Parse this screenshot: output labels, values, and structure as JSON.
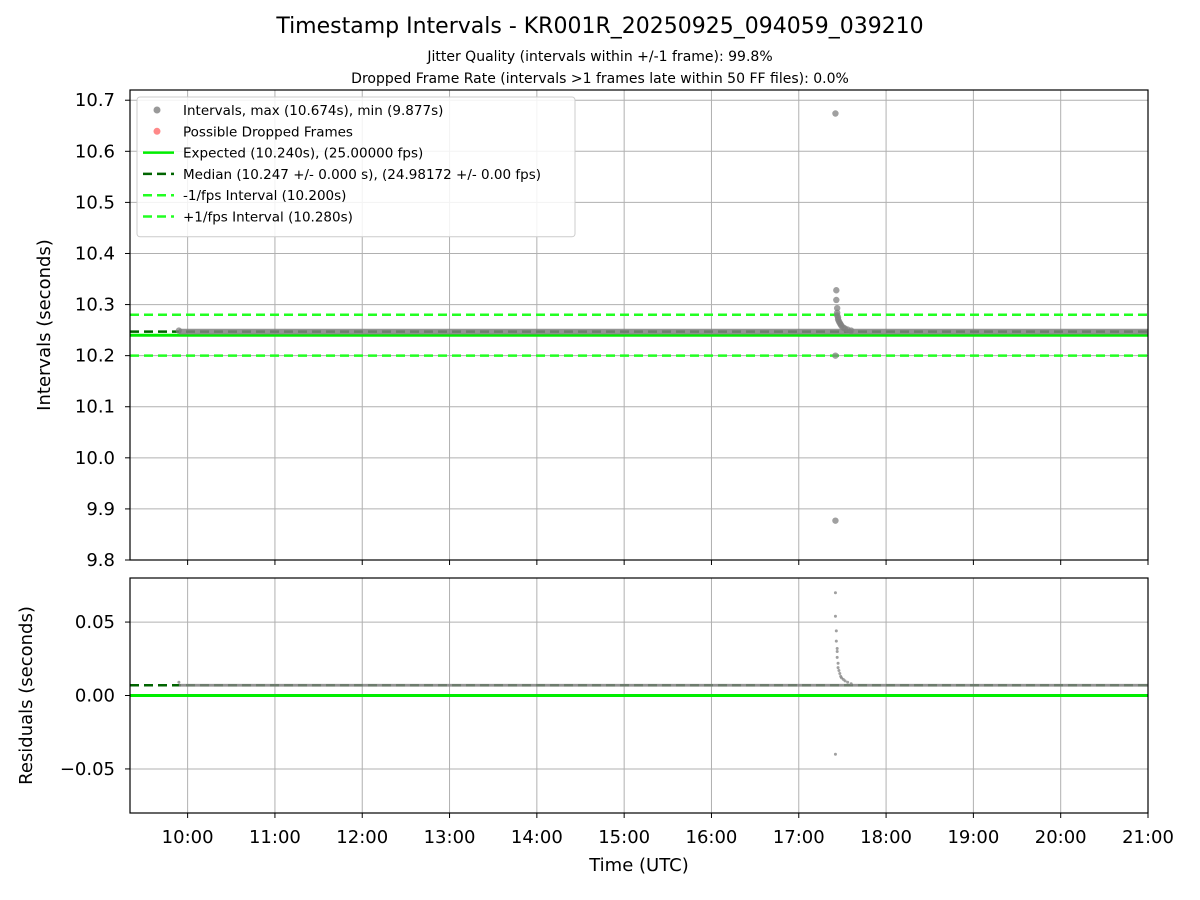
{
  "title": "Timestamp Intervals - KR001R_20250925_094059_039210",
  "subtitle_jitter": "Jitter Quality (intervals within +/-1 frame): 99.8%",
  "subtitle_dropped": "Dropped Frame Rate (intervals >1 frames late within 50 FF files): 0.0%",
  "colors": {
    "points": "#808080",
    "dropped": "#ff6b6b",
    "expected": "#00ee00",
    "median": "#006400",
    "fps_bounds": "#22ff22",
    "grid": "#b0b0b0"
  },
  "chart_data": [
    {
      "type": "scatter",
      "panel": "intervals",
      "ylabel": "Intervals (seconds)",
      "xlim": [
        9.34,
        21.0
      ],
      "ylim": [
        9.8,
        10.72
      ],
      "grid": true,
      "yticks": [
        9.8,
        9.9,
        10.0,
        10.1,
        10.2,
        10.3,
        10.4,
        10.5,
        10.6,
        10.7
      ],
      "ytick_labels": [
        "9.8",
        "9.9",
        "10.0",
        "10.1",
        "10.2",
        "10.3",
        "10.4",
        "10.5",
        "10.6",
        "10.7"
      ],
      "legend_position": "top-left",
      "legend": [
        {
          "label": "Intervals, max (10.674s), min (9.877s)",
          "kind": "marker",
          "color": "points"
        },
        {
          "label": "Possible Dropped Frames",
          "kind": "marker",
          "color": "dropped"
        },
        {
          "label": "Expected (10.240s), (25.00000 fps)",
          "kind": "solid",
          "color": "expected"
        },
        {
          "label": "Median (10.247 +/- 0.000 s), (24.98172 +/- 0.00 fps)",
          "kind": "dashed",
          "color": "median"
        },
        {
          "label": "-1/fps Interval (10.200s)",
          "kind": "dashed",
          "color": "fps_bounds"
        },
        {
          "label": "+1/fps Interval (10.280s)",
          "kind": "dashed",
          "color": "fps_bounds"
        }
      ],
      "hlines": [
        {
          "name": "expected",
          "y": 10.24,
          "style": "solid",
          "color": "expected"
        },
        {
          "name": "median",
          "y": 10.247,
          "style": "dashed",
          "color": "median"
        },
        {
          "name": "minus-fps",
          "y": 10.2,
          "style": "dashed",
          "color": "fps_bounds"
        },
        {
          "name": "plus-fps",
          "y": 10.28,
          "style": "dashed",
          "color": "fps_bounds"
        }
      ],
      "baseline": {
        "x_start": 9.9,
        "x_end": 21.0,
        "y": 10.247
      },
      "points": [
        {
          "x": 9.9,
          "y": 10.249
        },
        {
          "x": 17.42,
          "y": 10.674
        },
        {
          "x": 17.42,
          "y": 9.877
        },
        {
          "x": 17.42,
          "y": 10.2
        },
        {
          "x": 17.43,
          "y": 10.328
        },
        {
          "x": 17.43,
          "y": 10.309
        },
        {
          "x": 17.44,
          "y": 10.293
        },
        {
          "x": 17.44,
          "y": 10.284
        },
        {
          "x": 17.44,
          "y": 10.279
        },
        {
          "x": 17.45,
          "y": 10.275
        },
        {
          "x": 17.45,
          "y": 10.271
        },
        {
          "x": 17.46,
          "y": 10.267
        },
        {
          "x": 17.47,
          "y": 10.264
        },
        {
          "x": 17.48,
          "y": 10.261
        },
        {
          "x": 17.49,
          "y": 10.258
        },
        {
          "x": 17.51,
          "y": 10.255
        },
        {
          "x": 17.53,
          "y": 10.253
        },
        {
          "x": 17.56,
          "y": 10.251
        },
        {
          "x": 17.6,
          "y": 10.249
        }
      ]
    },
    {
      "type": "scatter",
      "panel": "residuals",
      "ylabel": "Residuals (seconds)",
      "xlabel": "Time (UTC)",
      "xlim": [
        9.34,
        21.0
      ],
      "ylim": [
        -0.08,
        0.08
      ],
      "grid": true,
      "yticks": [
        -0.05,
        0.0,
        0.05
      ],
      "ytick_labels": [
        "−0.05",
        "0.00",
        "0.05"
      ],
      "xticks": [
        10,
        11,
        12,
        13,
        14,
        15,
        16,
        17,
        18,
        19,
        20,
        21
      ],
      "xtick_labels": [
        "10:00",
        "11:00",
        "12:00",
        "13:00",
        "14:00",
        "15:00",
        "16:00",
        "17:00",
        "18:00",
        "19:00",
        "20:00",
        "21:00"
      ],
      "hlines": [
        {
          "name": "expected",
          "y": 0.0,
          "style": "solid",
          "color": "expected"
        },
        {
          "name": "median",
          "y": 0.007,
          "style": "dashed",
          "color": "median"
        }
      ],
      "baseline": {
        "x_start": 9.9,
        "x_end": 21.0,
        "y": 0.007
      },
      "points": [
        {
          "x": 9.9,
          "y": 0.009
        },
        {
          "x": 17.42,
          "y": 0.07
        },
        {
          "x": 17.42,
          "y": 0.054
        },
        {
          "x": 17.42,
          "y": -0.04
        },
        {
          "x": 17.43,
          "y": 0.044
        },
        {
          "x": 17.43,
          "y": 0.037
        },
        {
          "x": 17.44,
          "y": 0.032
        },
        {
          "x": 17.44,
          "y": 0.03
        },
        {
          "x": 17.44,
          "y": 0.026
        },
        {
          "x": 17.45,
          "y": 0.022
        },
        {
          "x": 17.45,
          "y": 0.019
        },
        {
          "x": 17.46,
          "y": 0.017
        },
        {
          "x": 17.47,
          "y": 0.015
        },
        {
          "x": 17.48,
          "y": 0.013
        },
        {
          "x": 17.49,
          "y": 0.012
        },
        {
          "x": 17.51,
          "y": 0.011
        },
        {
          "x": 17.53,
          "y": 0.01
        },
        {
          "x": 17.56,
          "y": 0.009
        },
        {
          "x": 17.6,
          "y": 0.008
        }
      ]
    }
  ]
}
